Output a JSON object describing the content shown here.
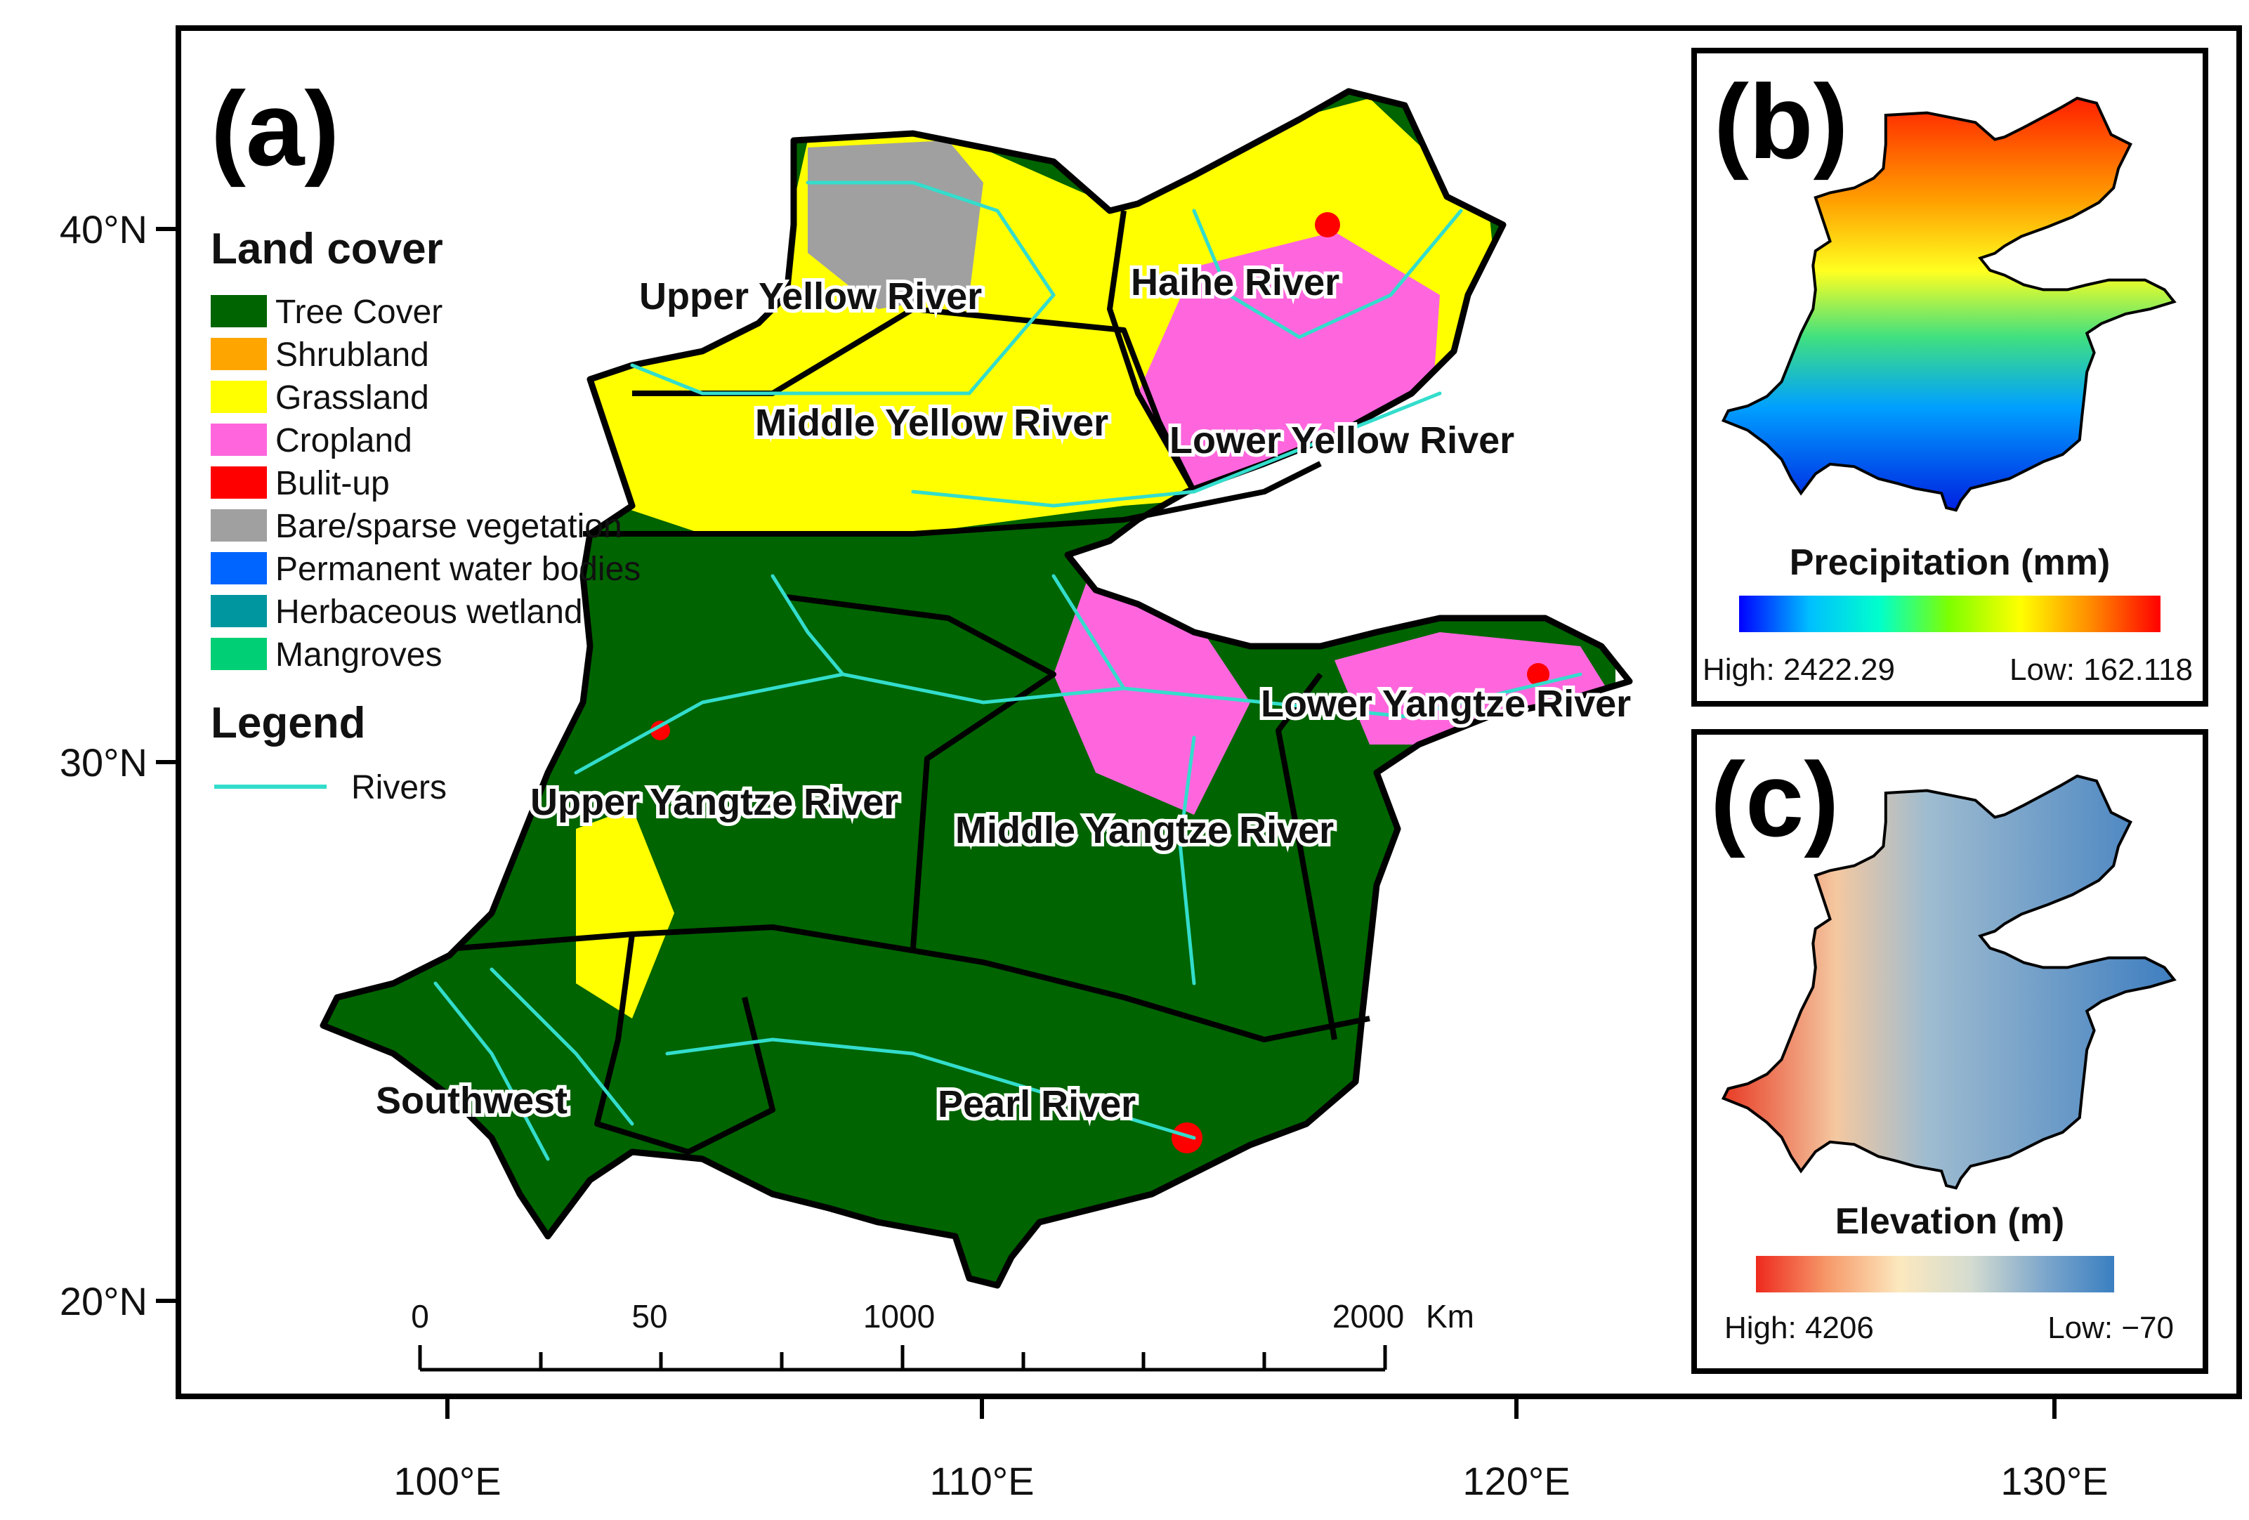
{
  "panels": {
    "a": {
      "letter": "(a)",
      "lat_ticks": [
        "40°N",
        "30°N",
        "20°N"
      ],
      "lon_ticks": [
        "100°E",
        "110°E",
        "120°E",
        "130°E"
      ],
      "land_cover": {
        "title": "Land cover",
        "classes": [
          {
            "label": "Tree Cover",
            "color": "#006400"
          },
          {
            "label": "Shrubland",
            "color": "#FFA500"
          },
          {
            "label": "Grassland",
            "color": "#FFFF00"
          },
          {
            "label": "Cropland",
            "color": "#FF66DD"
          },
          {
            "label": "Bulit-up",
            "color": "#FF0000"
          },
          {
            "label": "Bare/sparse vegetation",
            "color": "#A0A0A0"
          },
          {
            "label": "Permanent water bodies",
            "color": "#0064FF"
          },
          {
            "label": "Herbaceous wetland",
            "color": "#0096A0"
          },
          {
            "label": "Mangroves",
            "color": "#00CF75"
          }
        ]
      },
      "legend": {
        "title": "Legend",
        "rivers_label": "Rivers",
        "river_color": "#33DDCC"
      },
      "regions": [
        "Upper Yellow River",
        "Haihe River",
        "Middle Yellow River",
        "Lower Yellow River",
        "Lower Yangtze River",
        "Upper Yangtze River",
        "Middle Yangtze River",
        "Southwest",
        "Pearl River"
      ],
      "scale_bar": {
        "labels": [
          "0",
          "50",
          "1000",
          "2000"
        ],
        "unit": "Km"
      }
    },
    "b": {
      "letter": "(b)",
      "title": "Precipitation (mm)",
      "high_label": "High: 2422.29",
      "low_label": "Low: 162.118",
      "colors": [
        "#0000FF",
        "#00BFFF",
        "#00FFCC",
        "#7FFF00",
        "#FFFF00",
        "#FF8C00",
        "#FF0000"
      ]
    },
    "c": {
      "letter": "(c)",
      "title": "Elevation (m)",
      "high_label": "High: 4206",
      "low_label": "Low: −70",
      "colors": [
        "#EE2A1E",
        "#F69A6A",
        "#FCE8BE",
        "#D4DCD0",
        "#7FA8CC",
        "#3A7FC1"
      ]
    }
  }
}
